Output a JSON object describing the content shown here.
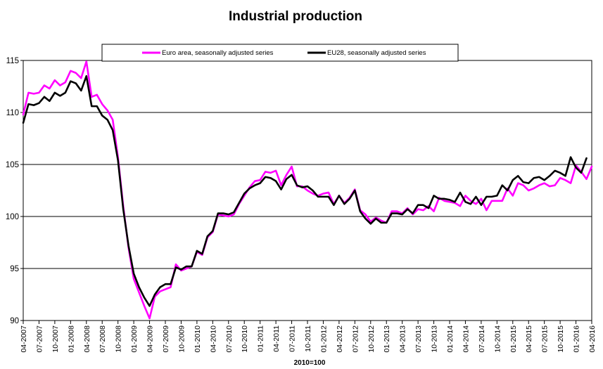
{
  "chart_data": {
    "type": "line",
    "title": "Industrial production",
    "xlabel": "2010=100",
    "ylabel": "",
    "ylim": [
      90,
      115
    ],
    "y_ticks": [
      90,
      95,
      100,
      105,
      110,
      115
    ],
    "grid": "horizontal",
    "legend_position": "top",
    "x_start": "04-2007",
    "x_tick_labels": [
      "04-2007",
      "07-2007",
      "10-2007",
      "01-2008",
      "04-2008",
      "07-2008",
      "10-2008",
      "01-2009",
      "04-2009",
      "07-2009",
      "10-2009",
      "01-2010",
      "04-2010",
      "07-2010",
      "10-2010",
      "01-2011",
      "04-2011",
      "07-2011",
      "10-2011",
      "01-2012",
      "04-2012",
      "07-2012",
      "10-2012",
      "01-2013",
      "04-2013",
      "07-2013",
      "10-2013",
      "01-2014",
      "04-2014",
      "07-2014",
      "10-2014",
      "01-2015",
      "04-2015",
      "07-2015",
      "10-2015",
      "01-2016",
      "04-2016"
    ],
    "series": [
      {
        "name": "Euro area, seasonally adjusted series",
        "color": "#ff00ff",
        "values": [
          109.8,
          111.9,
          111.8,
          111.9,
          112.6,
          112.3,
          113.1,
          112.6,
          112.9,
          114.0,
          113.8,
          113.3,
          114.9,
          111.5,
          111.7,
          110.8,
          110.2,
          109.3,
          105.7,
          101.0,
          97.0,
          94.0,
          92.7,
          91.4,
          90.2,
          92.3,
          92.8,
          93.0,
          93.2,
          95.4,
          94.8,
          95.0,
          95.2,
          96.6,
          96.3,
          98.0,
          98.5,
          100.2,
          100.1,
          100.0,
          100.2,
          101.2,
          102.0,
          102.8,
          103.4,
          103.5,
          104.3,
          104.2,
          104.4,
          103.0,
          104.0,
          104.8,
          102.9,
          102.9,
          102.5,
          102.2,
          102.0,
          102.2,
          102.3,
          101.2,
          102.0,
          101.3,
          101.8,
          102.6,
          100.6,
          100.2,
          99.5,
          99.9,
          99.6,
          99.4,
          100.5,
          100.5,
          100.3,
          100.8,
          100.2,
          100.7,
          100.6,
          101.0,
          100.5,
          101.8,
          101.5,
          101.4,
          101.3,
          101.0,
          102.0,
          101.5,
          101.2,
          101.7,
          100.6,
          101.5,
          101.5,
          101.5,
          102.7,
          102.0,
          103.2,
          103.0,
          102.5,
          102.7,
          103.0,
          103.2,
          102.9,
          103.0,
          103.7,
          103.5,
          103.2,
          104.9,
          104.3,
          103.6,
          104.8
        ]
      },
      {
        "name": "EU28, seasonally adjusted series",
        "color": "#000000",
        "values": [
          109.0,
          110.8,
          110.7,
          110.9,
          111.5,
          111.1,
          111.9,
          111.6,
          111.9,
          113.0,
          112.8,
          112.1,
          113.5,
          110.6,
          110.6,
          109.7,
          109.3,
          108.3,
          105.4,
          100.7,
          97.2,
          94.5,
          93.2,
          92.2,
          91.4,
          92.5,
          93.2,
          93.5,
          93.5,
          95.1,
          94.9,
          95.2,
          95.2,
          96.7,
          96.4,
          98.1,
          98.6,
          100.3,
          100.3,
          100.2,
          100.4,
          101.3,
          102.2,
          102.7,
          103.0,
          103.2,
          103.8,
          103.7,
          103.4,
          102.6,
          103.6,
          104.0,
          103.0,
          102.8,
          102.9,
          102.5,
          101.9,
          101.9,
          101.9,
          101.1,
          102.0,
          101.2,
          101.7,
          102.5,
          100.5,
          99.8,
          99.3,
          99.8,
          99.4,
          99.4,
          100.3,
          100.3,
          100.2,
          100.7,
          100.3,
          101.1,
          101.1,
          100.8,
          102.0,
          101.7,
          101.7,
          101.6,
          101.4,
          102.3,
          101.4,
          101.2,
          101.9,
          101.1,
          101.9,
          101.9,
          102.0,
          103.0,
          102.5,
          103.5,
          103.9,
          103.3,
          103.2,
          103.7,
          103.8,
          103.5,
          103.9,
          104.4,
          104.2,
          103.9,
          105.7,
          104.7,
          104.2,
          105.6
        ]
      }
    ]
  }
}
